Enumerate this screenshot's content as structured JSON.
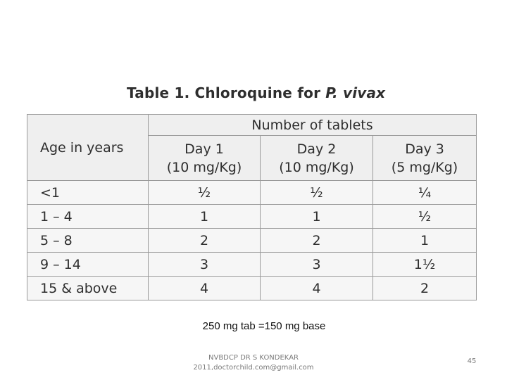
{
  "title": {
    "prefix": "Table 1. Chloroquine for ",
    "italic": "P. vivax"
  },
  "table": {
    "group_header": "Number of tablets",
    "age_header": "Age in years",
    "columns": [
      {
        "day": "Day 1",
        "dose": "(10 mg/Kg)"
      },
      {
        "day": "Day 2",
        "dose": "(10 mg/Kg)"
      },
      {
        "day": "Day 3",
        "dose": "(5 mg/Kg)"
      }
    ],
    "rows": [
      {
        "age": "<1",
        "values": [
          "½",
          "½",
          "¼"
        ]
      },
      {
        "age": "1 – 4",
        "values": [
          "1",
          "1",
          "½"
        ]
      },
      {
        "age": "5 – 8",
        "values": [
          "2",
          "2",
          "1"
        ]
      },
      {
        "age": "9 – 14",
        "values": [
          "3",
          "3",
          "1½"
        ]
      },
      {
        "age": "15 & above",
        "values": [
          "4",
          "4",
          "2"
        ]
      }
    ]
  },
  "footnote": "250 mg tab =150 mg base",
  "footer": {
    "author_line1": "NVBDCP DR S KONDEKAR",
    "author_line2": "2011,doctorchild.com@gmail.com",
    "page_number": "45"
  }
}
